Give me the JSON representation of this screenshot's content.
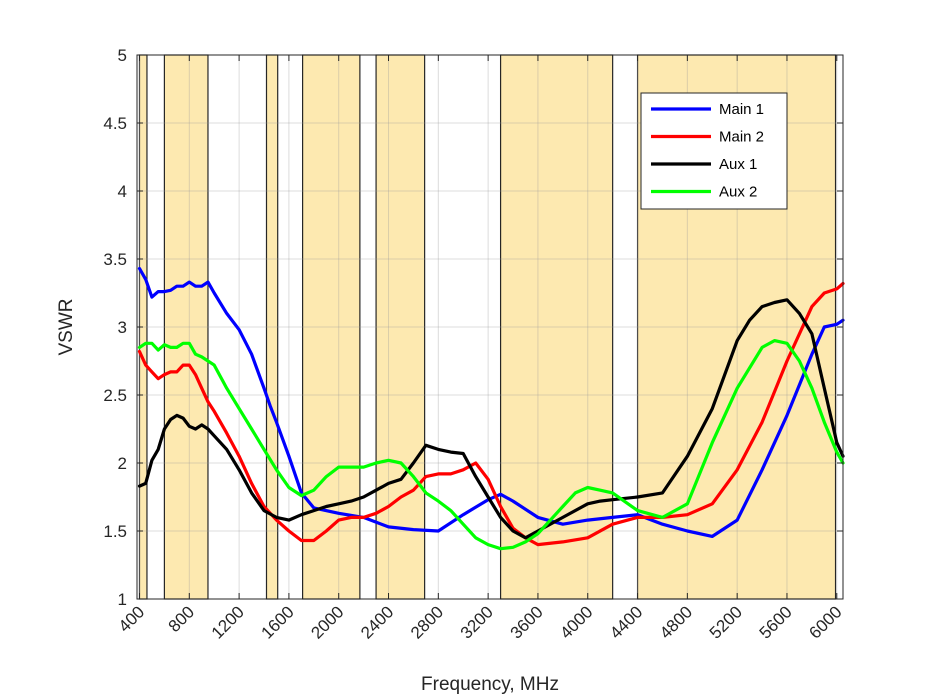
{
  "chart_data": {
    "type": "line",
    "title": "",
    "xlabel": "Frequency, MHz",
    "ylabel": "VSWR",
    "xlim": [
      380,
      6050
    ],
    "ylim": [
      1,
      5
    ],
    "xticks": [
      400,
      800,
      1200,
      1600,
      2000,
      2400,
      2800,
      3200,
      3600,
      4000,
      4400,
      4800,
      5200,
      5600,
      6000
    ],
    "xtick_labels": [
      "400",
      "800",
      "1200",
      "1600",
      "2000",
      "2400",
      "2800",
      "3200",
      "3600",
      "4000",
      "4400",
      "4800",
      "5200",
      "5600",
      "6000"
    ],
    "yticks": [
      1,
      1.5,
      2,
      2.5,
      3,
      3.5,
      4,
      4.5,
      5
    ],
    "ytick_labels": [
      "1",
      "1.5",
      "2",
      "2.5",
      "3",
      "3.5",
      "4",
      "4.5",
      "5"
    ],
    "grid": true,
    "legend_position": "top-right",
    "band_color": "#fde9b0",
    "bands": [
      [
        400,
        460
      ],
      [
        600,
        950
      ],
      [
        1420,
        1510
      ],
      [
        1710,
        2170
      ],
      [
        2300,
        2690
      ],
      [
        3300,
        4200
      ],
      [
        4400,
        5990
      ]
    ],
    "series": [
      {
        "name": "Main 1",
        "color": "#0000ff",
        "x": [
          400,
          450,
          500,
          550,
          600,
          650,
          700,
          750,
          800,
          850,
          900,
          950,
          1000,
          1100,
          1200,
          1300,
          1400,
          1450,
          1500,
          1600,
          1700,
          1800,
          2000,
          2200,
          2400,
          2600,
          2800,
          3000,
          3200,
          3300,
          3400,
          3600,
          3800,
          4000,
          4200,
          4400,
          4600,
          4800,
          5000,
          5200,
          5400,
          5600,
          5800,
          5900,
          6000,
          6050
        ],
        "y": [
          3.43,
          3.35,
          3.22,
          3.26,
          3.26,
          3.27,
          3.3,
          3.3,
          3.33,
          3.3,
          3.3,
          3.33,
          3.25,
          3.1,
          2.98,
          2.8,
          2.55,
          2.42,
          2.3,
          2.05,
          1.78,
          1.67,
          1.63,
          1.6,
          1.53,
          1.51,
          1.5,
          1.62,
          1.73,
          1.77,
          1.72,
          1.6,
          1.55,
          1.58,
          1.6,
          1.62,
          1.55,
          1.5,
          1.46,
          1.58,
          1.95,
          2.35,
          2.8,
          3.0,
          3.02,
          3.05
        ]
      },
      {
        "name": "Main 2",
        "color": "#ff0000",
        "x": [
          400,
          450,
          500,
          550,
          600,
          650,
          700,
          750,
          800,
          850,
          900,
          950,
          1000,
          1100,
          1200,
          1300,
          1400,
          1500,
          1600,
          1700,
          1800,
          1900,
          2000,
          2100,
          2200,
          2300,
          2400,
          2500,
          2600,
          2700,
          2800,
          2900,
          3000,
          3100,
          3200,
          3300,
          3400,
          3500,
          3600,
          3800,
          4000,
          4200,
          4400,
          4600,
          4800,
          5000,
          5200,
          5400,
          5600,
          5800,
          5900,
          6000,
          6050
        ],
        "y": [
          2.82,
          2.72,
          2.67,
          2.62,
          2.65,
          2.67,
          2.67,
          2.72,
          2.72,
          2.65,
          2.55,
          2.45,
          2.38,
          2.22,
          2.05,
          1.85,
          1.68,
          1.58,
          1.5,
          1.43,
          1.43,
          1.5,
          1.58,
          1.6,
          1.6,
          1.63,
          1.68,
          1.75,
          1.8,
          1.9,
          1.92,
          1.92,
          1.95,
          2.0,
          1.88,
          1.68,
          1.52,
          1.45,
          1.4,
          1.42,
          1.45,
          1.55,
          1.6,
          1.6,
          1.62,
          1.7,
          1.95,
          2.3,
          2.75,
          3.15,
          3.25,
          3.28,
          3.32
        ]
      },
      {
        "name": "Aux 1",
        "color": "#000000",
        "x": [
          400,
          450,
          500,
          550,
          600,
          650,
          700,
          750,
          800,
          850,
          900,
          950,
          1000,
          1100,
          1200,
          1300,
          1400,
          1500,
          1600,
          1700,
          1800,
          1900,
          2000,
          2100,
          2200,
          2300,
          2400,
          2500,
          2600,
          2700,
          2800,
          2900,
          3000,
          3100,
          3200,
          3300,
          3400,
          3500,
          3600,
          3800,
          4000,
          4100,
          4200,
          4400,
          4600,
          4800,
          5000,
          5200,
          5300,
          5400,
          5500,
          5600,
          5700,
          5800,
          5900,
          6000,
          6050
        ],
        "y": [
          1.83,
          1.85,
          2.02,
          2.1,
          2.25,
          2.32,
          2.35,
          2.33,
          2.27,
          2.25,
          2.28,
          2.25,
          2.2,
          2.1,
          1.95,
          1.78,
          1.65,
          1.6,
          1.58,
          1.62,
          1.65,
          1.68,
          1.7,
          1.72,
          1.75,
          1.8,
          1.85,
          1.88,
          2.0,
          2.13,
          2.1,
          2.08,
          2.07,
          1.9,
          1.75,
          1.6,
          1.5,
          1.45,
          1.5,
          1.6,
          1.7,
          1.72,
          1.73,
          1.75,
          1.78,
          2.05,
          2.4,
          2.9,
          3.05,
          3.15,
          3.18,
          3.2,
          3.1,
          2.95,
          2.55,
          2.15,
          2.05
        ]
      },
      {
        "name": "Aux 2",
        "color": "#00ff00",
        "x": [
          400,
          450,
          500,
          550,
          600,
          650,
          700,
          750,
          800,
          850,
          900,
          950,
          1000,
          1100,
          1200,
          1300,
          1400,
          1500,
          1600,
          1700,
          1800,
          1900,
          2000,
          2100,
          2200,
          2300,
          2400,
          2500,
          2600,
          2700,
          2800,
          2900,
          3000,
          3100,
          3200,
          3300,
          3400,
          3500,
          3600,
          3700,
          3800,
          3900,
          4000,
          4100,
          4200,
          4400,
          4600,
          4800,
          5000,
          5200,
          5400,
          5500,
          5600,
          5700,
          5800,
          5900,
          6000,
          6050
        ],
        "y": [
          2.85,
          2.88,
          2.88,
          2.83,
          2.87,
          2.85,
          2.85,
          2.88,
          2.88,
          2.8,
          2.78,
          2.75,
          2.72,
          2.55,
          2.4,
          2.25,
          2.1,
          1.95,
          1.82,
          1.76,
          1.8,
          1.9,
          1.97,
          1.97,
          1.97,
          2.0,
          2.02,
          2.0,
          1.9,
          1.78,
          1.72,
          1.65,
          1.55,
          1.45,
          1.4,
          1.37,
          1.38,
          1.42,
          1.48,
          1.58,
          1.68,
          1.78,
          1.82,
          1.8,
          1.78,
          1.65,
          1.6,
          1.7,
          2.15,
          2.55,
          2.85,
          2.9,
          2.88,
          2.75,
          2.55,
          2.3,
          2.08,
          2.0
        ]
      }
    ]
  }
}
